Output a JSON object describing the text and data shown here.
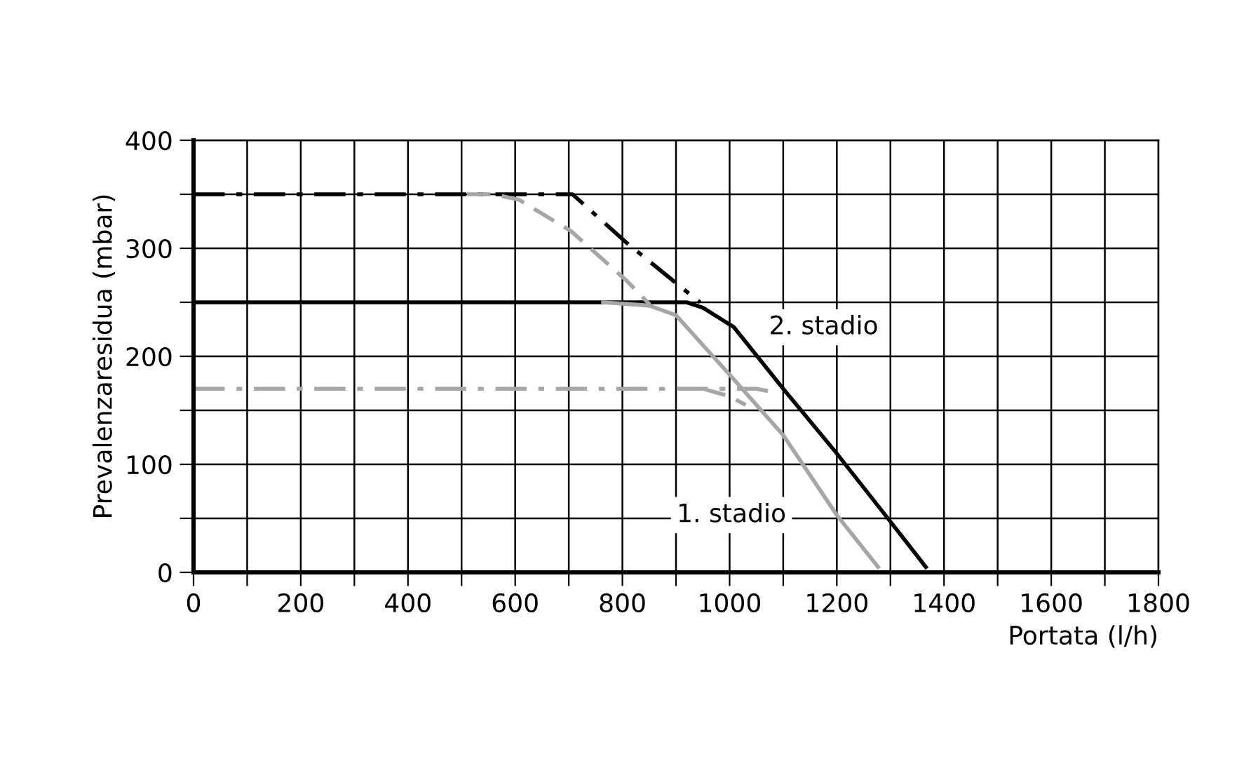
{
  "chart_data": {
    "type": "line",
    "xlabel": "Portata (l/h)",
    "ylabel": "Prevalenzaresidua (mbar)",
    "xlim": [
      0,
      1800
    ],
    "ylim": [
      0,
      400
    ],
    "xticks": [
      0,
      {
        "value": 100,
        "label": null
      },
      200,
      {
        "value": 300,
        "label": null
      },
      400,
      {
        "value": 500,
        "label": null
      },
      600,
      {
        "value": 700,
        "label": null
      },
      800,
      {
        "value": 900,
        "label": null
      },
      1000,
      {
        "value": 1100,
        "label": null
      },
      1200,
      {
        "value": 1300,
        "label": null
      },
      1400,
      {
        "value": 1500,
        "label": null
      },
      1600,
      {
        "value": 1700,
        "label": null
      },
      1800
    ],
    "yticks": [
      0,
      {
        "value": 50,
        "label": null
      },
      100,
      {
        "value": 150,
        "label": null
      },
      200,
      {
        "value": 250,
        "label": null
      },
      300,
      {
        "value": 350,
        "label": null
      },
      400
    ],
    "grid": true,
    "legend": false,
    "series": [
      {
        "name": "2. stadio",
        "color": "#000000",
        "line_style": "solid",
        "x": [
          0,
          920,
          950,
          1008,
          1100,
          1200,
          1300,
          1366
        ],
        "values": [
          250,
          250,
          245,
          227,
          170,
          110,
          47,
          5
        ]
      },
      {
        "color": "#000000",
        "line_style": "dashdot",
        "x": [
          0,
          668,
          707,
          808,
          927,
          945
        ],
        "values": [
          350,
          350,
          350,
          305,
          257,
          250
        ]
      },
      {
        "name": "1. stadio",
        "color": "#a6a6a6",
        "line_style": "solid",
        "x": [
          764,
          850,
          900,
          1000,
          1100,
          1200,
          1277
        ],
        "values": [
          250,
          247,
          238,
          183,
          127,
          53,
          5
        ]
      },
      {
        "color": "#a6a6a6",
        "line_style": "dashed",
        "x": [
          510,
          560,
          607,
          704,
          808,
          851
        ],
        "values": [
          350,
          350,
          345,
          316,
          270,
          248
        ]
      },
      {
        "color": "#a6a6a6",
        "line_style": "dashdot",
        "x": [
          0,
          950,
          1050,
          1090
        ],
        "values": [
          170,
          170,
          170,
          166
        ]
      },
      {
        "color": "#a6a6a6",
        "line_style": "dashed",
        "x": [
          950,
          1000,
          1030
        ],
        "values": [
          170,
          163,
          155
        ]
      }
    ]
  }
}
